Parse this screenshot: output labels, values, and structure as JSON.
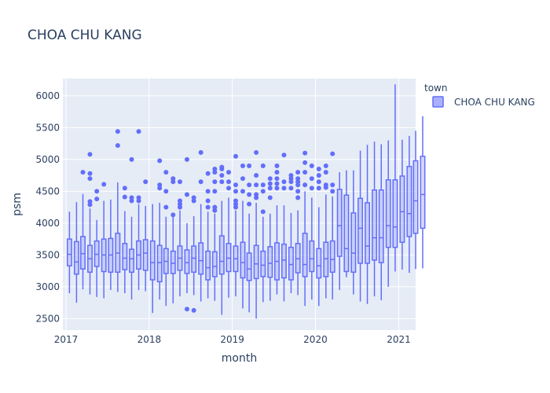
{
  "chart_data": {
    "type": "box",
    "title": "CHOA CHU KANG",
    "xlabel": "month",
    "ylabel": "psm",
    "ylim": [
      2320,
      6270
    ],
    "xlim": [
      "2016-12-18",
      "2021-03-16"
    ],
    "grid": true,
    "legend": {
      "title": "town",
      "position": "top-right",
      "entries": [
        "CHOA CHU KANG"
      ]
    },
    "colors": {
      "box_line": "#636efa",
      "box_fill": "#aab0fc",
      "plot_bg": "#e5ecf6",
      "grid": "#ffffff",
      "text": "#2a3f5f"
    },
    "yticks": [
      2500,
      3000,
      3500,
      4000,
      4500,
      5000,
      5500,
      6000
    ],
    "xticks": [
      {
        "date": "2017-01-01",
        "label": "2017"
      },
      {
        "date": "2018-01-01",
        "label": "2018"
      },
      {
        "date": "2019-01-01",
        "label": "2019"
      },
      {
        "date": "2020-01-01",
        "label": "2020"
      },
      {
        "date": "2021-01-01",
        "label": "2021"
      }
    ],
    "series": [
      {
        "name": "CHOA CHU KANG",
        "boxes": [
          {
            "month": "2017-01",
            "min": 2900,
            "q1": 3330,
            "median": 3510,
            "q3": 3750,
            "max": 4180,
            "outliers": []
          },
          {
            "month": "2017-02",
            "min": 2750,
            "q1": 3200,
            "median": 3390,
            "q3": 3710,
            "max": 4330,
            "outliers": []
          },
          {
            "month": "2017-03",
            "min": 2960,
            "q1": 3280,
            "median": 3520,
            "q3": 3790,
            "max": 4460,
            "outliers": [
              4800
            ]
          },
          {
            "month": "2017-04",
            "min": 2880,
            "q1": 3230,
            "median": 3440,
            "q3": 3650,
            "max": 4230,
            "outliers": [
              4290,
              4340,
              4700,
              4780,
              5080
            ]
          },
          {
            "month": "2017-05",
            "min": 2840,
            "q1": 3320,
            "median": 3510,
            "q3": 3720,
            "max": 4050,
            "outliers": [
              4380,
              4500
            ]
          },
          {
            "month": "2017-06",
            "min": 2820,
            "q1": 3240,
            "median": 3500,
            "q3": 3750,
            "max": 4350,
            "outliers": [
              4610
            ]
          },
          {
            "month": "2017-07",
            "min": 2950,
            "q1": 3230,
            "median": 3500,
            "q3": 3760,
            "max": 4370,
            "outliers": []
          },
          {
            "month": "2017-08",
            "min": 2920,
            "q1": 3230,
            "median": 3530,
            "q3": 3840,
            "max": 4640,
            "outliers": [
              5220,
              5440
            ]
          },
          {
            "month": "2017-09",
            "min": 2900,
            "q1": 3270,
            "median": 3450,
            "q3": 3680,
            "max": 4190,
            "outliers": [
              4410,
              4550
            ]
          },
          {
            "month": "2017-10",
            "min": 2800,
            "q1": 3230,
            "median": 3440,
            "q3": 3590,
            "max": 4100,
            "outliers": [
              4350,
              4400,
              5000
            ]
          },
          {
            "month": "2017-11",
            "min": 2950,
            "q1": 3280,
            "median": 3500,
            "q3": 3720,
            "max": 4300,
            "outliers": [
              4350,
              4400,
              5440
            ]
          },
          {
            "month": "2017-12",
            "min": 2930,
            "q1": 3260,
            "median": 3530,
            "q3": 3740,
            "max": 4270,
            "outliers": [
              4650
            ]
          },
          {
            "month": "2018-01",
            "min": 2590,
            "q1": 3110,
            "median": 3380,
            "q3": 3720,
            "max": 4300,
            "outliers": []
          },
          {
            "month": "2018-02",
            "min": 2800,
            "q1": 3080,
            "median": 3380,
            "q3": 3650,
            "max": 4320,
            "outliers": [
              4550,
              4600,
              4980
            ]
          },
          {
            "month": "2018-03",
            "min": 2700,
            "q1": 3210,
            "median": 3400,
            "q3": 3600,
            "max": 4100,
            "outliers": [
              4250,
              4500,
              4800
            ]
          },
          {
            "month": "2018-04",
            "min": 2740,
            "q1": 3210,
            "median": 3370,
            "q3": 3560,
            "max": 4100,
            "outliers": [
              4130,
              4650,
              4700
            ]
          },
          {
            "month": "2018-05",
            "min": 2850,
            "q1": 3260,
            "median": 3450,
            "q3": 3640,
            "max": 4200,
            "outliers": [
              4250,
              4300,
              4350,
              4650
            ]
          },
          {
            "month": "2018-06",
            "min": 2900,
            "q1": 3210,
            "median": 3380,
            "q3": 3580,
            "max": 4000,
            "outliers": [
              2650,
              4450,
              5000
            ]
          },
          {
            "month": "2018-07",
            "min": 2870,
            "q1": 3230,
            "median": 3450,
            "q3": 3640,
            "max": 4110,
            "outliers": [
              2630,
              4350,
              4400
            ]
          },
          {
            "month": "2018-08",
            "min": 2770,
            "q1": 3200,
            "median": 3410,
            "q3": 3690,
            "max": 4300,
            "outliers": [
              4650,
              5110
            ]
          },
          {
            "month": "2018-09",
            "min": 2820,
            "q1": 3110,
            "median": 3300,
            "q3": 3560,
            "max": 4180,
            "outliers": [
              4250,
              4350,
              4500,
              4780
            ]
          },
          {
            "month": "2018-10",
            "min": 2780,
            "q1": 3160,
            "median": 3320,
            "q3": 3550,
            "max": 4150,
            "outliers": [
              4200,
              4250,
              4500,
              4650,
              4800,
              4850
            ]
          },
          {
            "month": "2018-11",
            "min": 2560,
            "q1": 3200,
            "median": 3400,
            "q3": 3800,
            "max": 4350,
            "outliers": [
              4650,
              4750,
              4850,
              4880
            ]
          },
          {
            "month": "2018-12",
            "min": 2830,
            "q1": 3240,
            "median": 3450,
            "q3": 3680,
            "max": 4400,
            "outliers": [
              4550,
              4650,
              4800
            ]
          },
          {
            "month": "2019-01",
            "min": 2850,
            "q1": 3240,
            "median": 3440,
            "q3": 3640,
            "max": 4200,
            "outliers": [
              4250,
              4300,
              4350,
              4500,
              4600,
              5050
            ]
          },
          {
            "month": "2019-02",
            "min": 2660,
            "q1": 3140,
            "median": 3380,
            "q3": 3700,
            "max": 4350,
            "outliers": [
              4500,
              4700,
              4900
            ]
          },
          {
            "month": "2019-03",
            "min": 2600,
            "q1": 3100,
            "median": 3280,
            "q3": 3530,
            "max": 4150,
            "outliers": [
              4300,
              4450,
              4600,
              4900
            ]
          },
          {
            "month": "2019-04",
            "min": 2500,
            "q1": 3130,
            "median": 3360,
            "q3": 3650,
            "max": 4320,
            "outliers": [
              4400,
              4450,
              4600,
              4750,
              5110
            ]
          },
          {
            "month": "2019-05",
            "min": 2760,
            "q1": 3160,
            "median": 3340,
            "q3": 3560,
            "max": 4100,
            "outliers": [
              4180,
              4500,
              4600,
              4900
            ]
          },
          {
            "month": "2019-06",
            "min": 2780,
            "q1": 3150,
            "median": 3370,
            "q3": 3630,
            "max": 4150,
            "outliers": [
              4400,
              4550,
              4620,
              4700
            ]
          },
          {
            "month": "2019-07",
            "min": 2880,
            "q1": 3110,
            "median": 3400,
            "q3": 3690,
            "max": 4280,
            "outliers": [
              4550,
              4620,
              4700,
              4800,
              4900
            ]
          },
          {
            "month": "2019-08",
            "min": 2770,
            "q1": 3140,
            "median": 3420,
            "q3": 3670,
            "max": 4280,
            "outliers": [
              4550,
              4650,
              5070
            ]
          },
          {
            "month": "2019-09",
            "min": 2900,
            "q1": 3110,
            "median": 3350,
            "q3": 3620,
            "max": 4160,
            "outliers": [
              4550,
              4650,
              4700,
              4750
            ]
          },
          {
            "month": "2019-10",
            "min": 2870,
            "q1": 3220,
            "median": 3440,
            "q3": 3680,
            "max": 4200,
            "outliers": [
              4400,
              4500,
              4600,
              4650,
              4700,
              4800
            ]
          },
          {
            "month": "2019-11",
            "min": 2700,
            "q1": 3160,
            "median": 3350,
            "q3": 3840,
            "max": 4500,
            "outliers": [
              4600,
              4800,
              4950,
              5100
            ]
          },
          {
            "month": "2019-12",
            "min": 2800,
            "q1": 3240,
            "median": 3440,
            "q3": 3720,
            "max": 4400,
            "outliers": [
              4550,
              4700,
              4900
            ]
          },
          {
            "month": "2020-01",
            "min": 2700,
            "q1": 3140,
            "median": 3330,
            "q3": 3600,
            "max": 4250,
            "outliers": [
              4550,
              4650,
              4750,
              4850
            ]
          },
          {
            "month": "2020-02",
            "min": 2820,
            "q1": 3160,
            "median": 3440,
            "q3": 3700,
            "max": 4450,
            "outliers": [
              4560,
              4600,
              4800,
              4900
            ]
          },
          {
            "month": "2020-03",
            "min": 2800,
            "q1": 3230,
            "median": 3430,
            "q3": 3720,
            "max": 4420,
            "outliers": [
              4500,
              4600,
              5090
            ]
          },
          {
            "month": "2020-04",
            "min": 2950,
            "q1": 3480,
            "median": 3960,
            "q3": 4530,
            "max": 4800,
            "outliers": []
          },
          {
            "month": "2020-05",
            "min": 3150,
            "q1": 3240,
            "median": 3600,
            "q3": 4440,
            "max": 4830,
            "outliers": []
          },
          {
            "month": "2020-06",
            "min": 2880,
            "q1": 3230,
            "median": 3530,
            "q3": 4160,
            "max": 4830,
            "outliers": []
          },
          {
            "month": "2020-07",
            "min": 2770,
            "q1": 3370,
            "median": 3920,
            "q3": 4390,
            "max": 5140,
            "outliers": []
          },
          {
            "month": "2020-08",
            "min": 2730,
            "q1": 3370,
            "median": 3640,
            "q3": 4320,
            "max": 5230,
            "outliers": []
          },
          {
            "month": "2020-09",
            "min": 2850,
            "q1": 3420,
            "median": 3770,
            "q3": 4520,
            "max": 5280,
            "outliers": []
          },
          {
            "month": "2020-10",
            "min": 2790,
            "q1": 3380,
            "median": 3770,
            "q3": 4520,
            "max": 5240,
            "outliers": []
          },
          {
            "month": "2020-11",
            "min": 3000,
            "q1": 3620,
            "median": 3960,
            "q3": 4680,
            "max": 5300,
            "outliers": []
          },
          {
            "month": "2020-12",
            "min": 3240,
            "q1": 3620,
            "median": 3940,
            "q3": 4680,
            "max": 6180,
            "outliers": []
          },
          {
            "month": "2021-01",
            "min": 3270,
            "q1": 3700,
            "median": 4180,
            "q3": 4740,
            "max": 5310,
            "outliers": []
          },
          {
            "month": "2021-02",
            "min": 3220,
            "q1": 3790,
            "median": 4150,
            "q3": 4890,
            "max": 5370,
            "outliers": []
          },
          {
            "month": "2021-03",
            "min": 3280,
            "q1": 3840,
            "median": 4350,
            "q3": 4980,
            "max": 5450,
            "outliers": []
          },
          {
            "month": "2021-04",
            "min": 3290,
            "q1": 3920,
            "median": 4450,
            "q3": 5050,
            "max": 5680,
            "outliers": []
          }
        ]
      }
    ]
  }
}
